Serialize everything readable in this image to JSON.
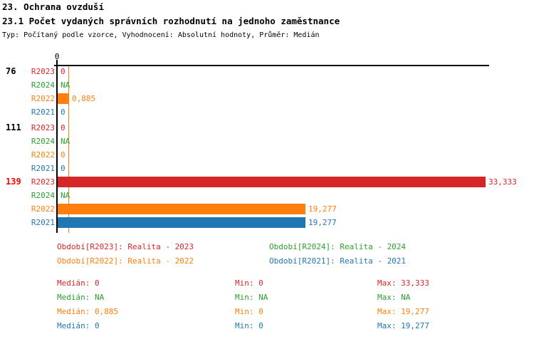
{
  "header": {
    "title": "23. Ochrana ovzduší",
    "subtitle": "23.1 Počet vydaných správních rozhodnutí na jednoho zaměstnance",
    "meta": "Typ: Počítaný podle vzorce, Vyhodnocení: Absolutní hodnoty, Průměr: Medián"
  },
  "chart_data": {
    "type": "bar",
    "orientation": "horizontal",
    "title": "23.1 Počet vydaných správních rozhodnutí na jednoho zaměstnance",
    "axis": {
      "tick_labels": [
        "0"
      ],
      "xlim": [
        0,
        33.333
      ],
      "grid": false
    },
    "series": [
      {
        "key": "R2023",
        "label": "R2023",
        "color": "#d62728",
        "legend": "Období[R2023]: Realita - 2023"
      },
      {
        "key": "R2024",
        "label": "R2024",
        "color": "#2ca02c",
        "legend": "Období[R2024]: Realita - 2024"
      },
      {
        "key": "R2022",
        "label": "R2022",
        "color": "#ff7f0e",
        "legend": "Období[R2022]: Realita - 2022"
      },
      {
        "key": "R2021",
        "label": "R2021",
        "color": "#1f77b4",
        "legend": "Období[R2021]: Realita - 2021"
      }
    ],
    "groups": [
      {
        "label": "76",
        "highlight": false,
        "values": [
          {
            "series": "R2023",
            "value": 0,
            "display": "0"
          },
          {
            "series": "R2024",
            "value": null,
            "display": "NA"
          },
          {
            "series": "R2022",
            "value": 0.885,
            "display": "0,885"
          },
          {
            "series": "R2021",
            "value": 0,
            "display": "0"
          }
        ]
      },
      {
        "label": "111",
        "highlight": false,
        "values": [
          {
            "series": "R2023",
            "value": 0,
            "display": "0"
          },
          {
            "series": "R2024",
            "value": null,
            "display": "NA"
          },
          {
            "series": "R2022",
            "value": 0,
            "display": "0"
          },
          {
            "series": "R2021",
            "value": 0,
            "display": "0"
          }
        ]
      },
      {
        "label": "139",
        "highlight": true,
        "values": [
          {
            "series": "R2023",
            "value": 33.333,
            "display": "33,333"
          },
          {
            "series": "R2024",
            "value": null,
            "display": "NA"
          },
          {
            "series": "R2022",
            "value": 19.277,
            "display": "19,277"
          },
          {
            "series": "R2021",
            "value": 19.277,
            "display": "19,277"
          }
        ]
      }
    ],
    "median_line": {
      "series": "R2022",
      "value": 0.885
    },
    "legend_rows": [
      [
        "R2023",
        "R2024"
      ],
      [
        "R2022",
        "R2021"
      ]
    ],
    "stats": {
      "labels": {
        "median": "Medián",
        "min": "Min",
        "max": "Max"
      },
      "rows": [
        {
          "series": "R2023",
          "median": "0",
          "min": "0",
          "max": "33,333"
        },
        {
          "series": "R2024",
          "median": "NA",
          "min": "NA",
          "max": "NA"
        },
        {
          "series": "R2022",
          "median": "0,885",
          "min": "0",
          "max": "19,277"
        },
        {
          "series": "R2021",
          "median": "0",
          "min": "0",
          "max": "19,277"
        }
      ]
    },
    "colors": {
      "highlight_group": "#ff0000",
      "normal_group": "#000000",
      "axis": "#000000"
    }
  }
}
